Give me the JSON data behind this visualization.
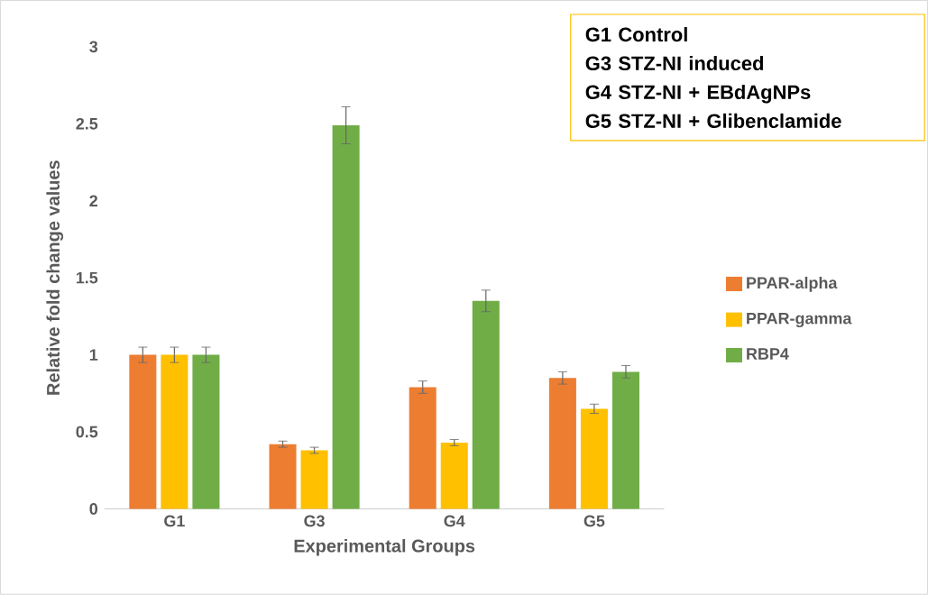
{
  "chart_data": {
    "type": "bar",
    "xlabel": "Experimental Groups",
    "ylabel": "Relative fold change values",
    "categories": [
      "G1",
      "G3",
      "G4",
      "G5"
    ],
    "series": [
      {
        "name": "PPAR-alpha",
        "color": "#ed7d31",
        "values": [
          1.0,
          0.42,
          0.79,
          0.85
        ],
        "errors": [
          0.05,
          0.02,
          0.04,
          0.04
        ]
      },
      {
        "name": "PPAR-gamma",
        "color": "#ffc000",
        "values": [
          1.0,
          0.38,
          0.43,
          0.65
        ],
        "errors": [
          0.05,
          0.02,
          0.02,
          0.03
        ]
      },
      {
        "name": "RBP4",
        "color": "#70ad47",
        "values": [
          1.0,
          2.49,
          1.35,
          0.89
        ],
        "errors": [
          0.05,
          0.12,
          0.07,
          0.04
        ]
      }
    ],
    "ylim": [
      0,
      3
    ],
    "yticks": [
      0,
      0.5,
      1,
      1.5,
      2,
      2.5,
      3
    ],
    "grid": false,
    "legend": "right",
    "annotations": [
      "G1 Control",
      "G3 STZ-NI induced",
      "G4 STZ-NI + EBdAgNPs",
      "G5 STZ-NI + Glibenclamide"
    ]
  }
}
